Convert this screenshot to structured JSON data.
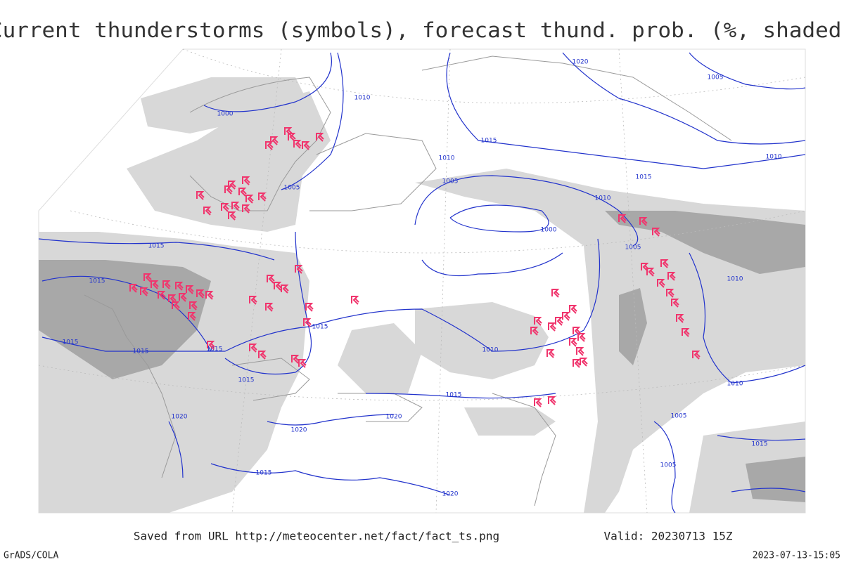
{
  "title": "Current thunderstorms (symbols), forecast thund. prob. (%, shaded)",
  "footer": {
    "saved": "Saved from URL http://meteocenter.net/fact/fact_ts.png",
    "valid": "Valid: 20230713 15Z",
    "software": "GrADS/COLA",
    "timestamp": "2023-07-13-15:05"
  },
  "isobar_labels": [
    "1000",
    "1010",
    "1020",
    "1005",
    "1015",
    "1010",
    "1005",
    "1005",
    "1015",
    "1010",
    "1010",
    "1000",
    "1005",
    "1015",
    "1015",
    "1015",
    "1015",
    "1015",
    "1015",
    "1015",
    "1010",
    "1015",
    "1020",
    "1020",
    "1020",
    "1015",
    "1020",
    "1010",
    "1010",
    "1005",
    "1015",
    "1005"
  ]
}
